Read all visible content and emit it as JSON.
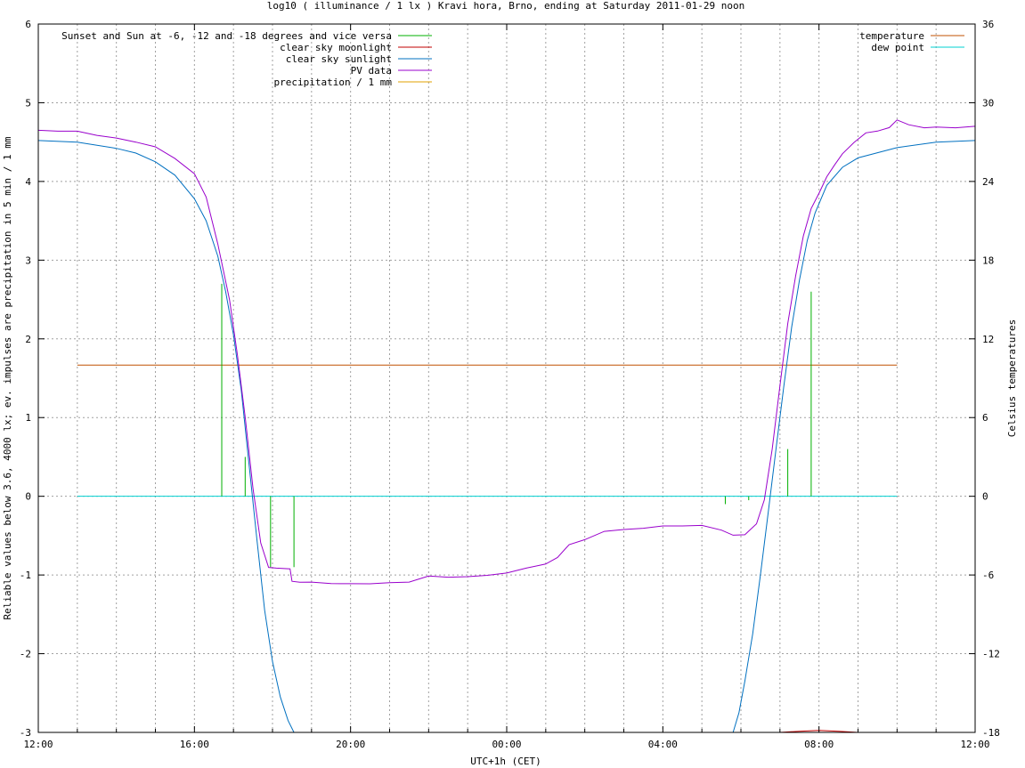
{
  "chart_data": {
    "type": "line",
    "title": "log10 ( illuminance / 1 lx ) Kravi hora, Brno, ending at Saturday 2011-01-29 noon",
    "xlabel": "UTC+1h (CET)",
    "ylabel": "Reliable values below 3.6, 4000 lx; ev. impulses are precipitation in 5 min / 1 mm",
    "y2label": "Celsius temperatures",
    "xlim": [
      12,
      36
    ],
    "ylim": [
      -3,
      6
    ],
    "y2lim": [
      -18,
      36
    ],
    "x_ticks": [
      {
        "v": 12,
        "label": "12:00"
      },
      {
        "v": 16,
        "label": "16:00"
      },
      {
        "v": 20,
        "label": "20:00"
      },
      {
        "v": 24,
        "label": "00:00"
      },
      {
        "v": 28,
        "label": "04:00"
      },
      {
        "v": 32,
        "label": "08:00"
      },
      {
        "v": 36,
        "label": "12:00"
      }
    ],
    "y_ticks": [
      {
        "v": -3,
        "label": "-3"
      },
      {
        "v": -2,
        "label": "-2"
      },
      {
        "v": -1,
        "label": "-1"
      },
      {
        "v": 0,
        "label": "0"
      },
      {
        "v": 1,
        "label": "1"
      },
      {
        "v": 2,
        "label": "2"
      },
      {
        "v": 3,
        "label": "3"
      },
      {
        "v": 4,
        "label": "4"
      },
      {
        "v": 5,
        "label": "5"
      },
      {
        "v": 6,
        "label": "6"
      }
    ],
    "y2_ticks": [
      {
        "v": -18,
        "label": "-18"
      },
      {
        "v": -12,
        "label": "-12"
      },
      {
        "v": -6,
        "label": "-6"
      },
      {
        "v": 0,
        "label": "0"
      },
      {
        "v": 6,
        "label": "6"
      },
      {
        "v": 12,
        "label": "12"
      },
      {
        "v": 18,
        "label": "18"
      },
      {
        "v": 24,
        "label": "24"
      },
      {
        "v": 30,
        "label": "30"
      },
      {
        "v": 36,
        "label": "36"
      }
    ],
    "grid": true,
    "legend_left": [
      {
        "name": "Sunset and Sun at -6, -12 and -18 degrees and vice versa",
        "color": "#00b000"
      },
      {
        "name": "clear sky moonlight",
        "color": "#c00000"
      },
      {
        "name": "clear sky sunlight",
        "color": "#0070c0"
      },
      {
        "name": "PV data",
        "color": "#9900cc"
      },
      {
        "name": "precipitation / 1 mm",
        "color": "#e0a000"
      }
    ],
    "legend_right": [
      {
        "name": "temperature",
        "color": "#c05000"
      },
      {
        "name": "dew point",
        "color": "#00d0d0"
      }
    ],
    "sun_markers": [
      {
        "x": 16.7,
        "y": 2.7
      },
      {
        "x": 17.3,
        "y": 0.5
      },
      {
        "x": 17.95,
        "y": -0.9
      },
      {
        "x": 18.55,
        "y": -0.9
      },
      {
        "x": 29.6,
        "y": -0.1
      },
      {
        "x": 30.2,
        "y": -0.05
      },
      {
        "x": 31.2,
        "y": 0.6
      },
      {
        "x": 31.8,
        "y": 2.6
      }
    ],
    "moonlight": [
      [
        31.0,
        -3.0
      ],
      [
        31.5,
        -2.985
      ],
      [
        32.0,
        -2.975
      ],
      [
        32.5,
        -2.985
      ],
      [
        33.0,
        -3.0
      ]
    ],
    "sunlight": [
      [
        12.0,
        4.52
      ],
      [
        13.0,
        4.5
      ],
      [
        14.0,
        4.42
      ],
      [
        14.5,
        4.36
      ],
      [
        15.0,
        4.25
      ],
      [
        15.5,
        4.08
      ],
      [
        16.0,
        3.78
      ],
      [
        16.3,
        3.5
      ],
      [
        16.6,
        3.05
      ],
      [
        16.8,
        2.6
      ],
      [
        17.0,
        2.05
      ],
      [
        17.2,
        1.35
      ],
      [
        17.4,
        0.4
      ],
      [
        17.6,
        -0.55
      ],
      [
        17.8,
        -1.45
      ],
      [
        18.0,
        -2.1
      ],
      [
        18.2,
        -2.55
      ],
      [
        18.4,
        -2.85
      ],
      [
        18.55,
        -3.0
      ],
      [
        29.8,
        -3.0
      ],
      [
        29.95,
        -2.75
      ],
      [
        30.1,
        -2.35
      ],
      [
        30.3,
        -1.75
      ],
      [
        30.5,
        -1.0
      ],
      [
        30.7,
        -0.2
      ],
      [
        30.9,
        0.6
      ],
      [
        31.1,
        1.4
      ],
      [
        31.3,
        2.15
      ],
      [
        31.5,
        2.75
      ],
      [
        31.7,
        3.25
      ],
      [
        31.9,
        3.6
      ],
      [
        32.2,
        3.95
      ],
      [
        32.6,
        4.18
      ],
      [
        33.0,
        4.3
      ],
      [
        34.0,
        4.43
      ],
      [
        35.0,
        4.5
      ],
      [
        36.0,
        4.52
      ]
    ],
    "pv_data": [
      [
        12.0,
        4.65
      ],
      [
        12.5,
        4.64
      ],
      [
        13.0,
        4.63
      ],
      [
        13.5,
        4.58
      ],
      [
        14.0,
        4.55
      ],
      [
        14.5,
        4.5
      ],
      [
        15.0,
        4.43
      ],
      [
        15.5,
        4.3
      ],
      [
        16.0,
        4.1
      ],
      [
        16.3,
        3.8
      ],
      [
        16.6,
        3.2
      ],
      [
        16.9,
        2.5
      ],
      [
        17.1,
        1.8
      ],
      [
        17.3,
        1.0
      ],
      [
        17.5,
        0.1
      ],
      [
        17.7,
        -0.6
      ],
      [
        17.9,
        -0.9
      ],
      [
        18.1,
        -0.92
      ],
      [
        18.45,
        -0.92
      ],
      [
        18.5,
        -1.08
      ],
      [
        18.7,
        -1.1
      ],
      [
        19.0,
        -1.1
      ],
      [
        19.5,
        -1.1
      ],
      [
        20.0,
        -1.1
      ],
      [
        20.5,
        -1.12
      ],
      [
        21.0,
        -1.1
      ],
      [
        21.5,
        -1.08
      ],
      [
        22.0,
        -1.02
      ],
      [
        22.5,
        -1.03
      ],
      [
        23.0,
        -1.02
      ],
      [
        23.5,
        -1.0
      ],
      [
        24.0,
        -0.98
      ],
      [
        24.5,
        -0.92
      ],
      [
        25.0,
        -0.85
      ],
      [
        25.3,
        -0.78
      ],
      [
        25.6,
        -0.62
      ],
      [
        26.0,
        -0.55
      ],
      [
        26.5,
        -0.45
      ],
      [
        27.0,
        -0.43
      ],
      [
        27.5,
        -0.4
      ],
      [
        28.0,
        -0.38
      ],
      [
        28.5,
        -0.38
      ],
      [
        29.0,
        -0.38
      ],
      [
        29.5,
        -0.42
      ],
      [
        29.8,
        -0.5
      ],
      [
        30.1,
        -0.48
      ],
      [
        30.4,
        -0.35
      ],
      [
        30.6,
        -0.05
      ],
      [
        30.8,
        0.6
      ],
      [
        31.0,
        1.4
      ],
      [
        31.2,
        2.2
      ],
      [
        31.4,
        2.8
      ],
      [
        31.6,
        3.3
      ],
      [
        31.8,
        3.65
      ],
      [
        32.0,
        3.85
      ],
      [
        32.2,
        4.05
      ],
      [
        32.4,
        4.2
      ],
      [
        32.6,
        4.35
      ],
      [
        32.9,
        4.5
      ],
      [
        33.2,
        4.62
      ],
      [
        33.5,
        4.65
      ],
      [
        33.8,
        4.68
      ],
      [
        34.0,
        4.78
      ],
      [
        34.3,
        4.72
      ],
      [
        34.7,
        4.68
      ],
      [
        35.0,
        4.7
      ],
      [
        35.5,
        4.68
      ],
      [
        36.0,
        4.7
      ]
    ],
    "temperature": {
      "x_start": 13.0,
      "x_end": 34.0,
      "value": 10.0
    },
    "dew_point": {
      "x_start": 13.0,
      "x_end": 34.0,
      "value": 0.0
    }
  }
}
